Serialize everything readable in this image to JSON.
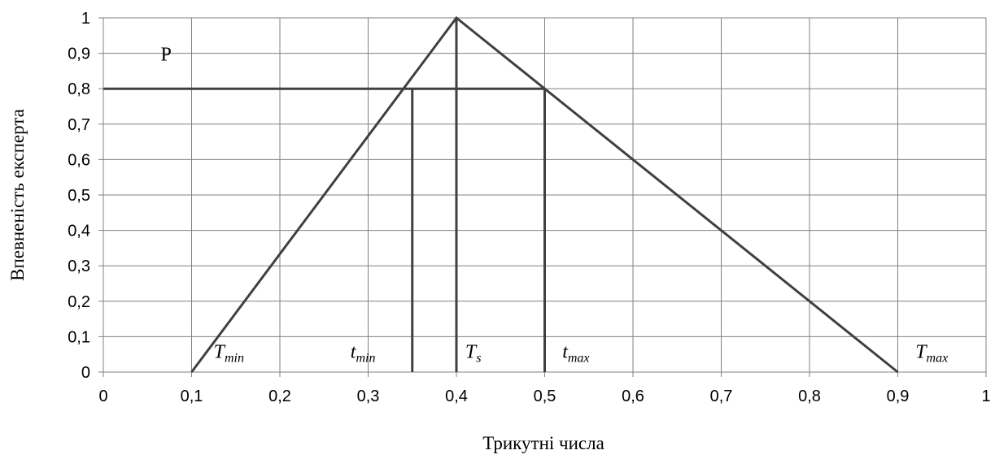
{
  "chart_data": {
    "type": "line",
    "xlabel": "Трикутні числа",
    "ylabel": "Впевненість експерта",
    "xlim": [
      0,
      1
    ],
    "ylim": [
      0,
      1
    ],
    "x_ticks": [
      "0",
      "0,1",
      "0,2",
      "0,3",
      "0,4",
      "0,5",
      "0,6",
      "0,7",
      "0,8",
      "0,9",
      "1"
    ],
    "y_ticks": [
      "0",
      "0,1",
      "0,2",
      "0,3",
      "0,4",
      "0,5",
      "0,6",
      "0,7",
      "0,8",
      "0,9",
      "1"
    ],
    "grid": true,
    "triangle": {
      "x": [
        0.1,
        0.4,
        0.9
      ],
      "y": [
        0,
        1,
        0
      ]
    },
    "level_line": {
      "y": 0.8,
      "x_from": 0,
      "x_to": 0.5
    },
    "verticals": [
      {
        "x": 0.35,
        "y_to": 0.8
      },
      {
        "x": 0.4,
        "y_to": 1.0
      },
      {
        "x": 0.5,
        "y_to": 0.8
      }
    ],
    "annotations": [
      {
        "main": "P",
        "sub": "",
        "italic": false,
        "x": 0.065,
        "y": 0.88
      },
      {
        "main": "T",
        "sub": "min",
        "italic": true,
        "x": 0.125,
        "y": 0.04
      },
      {
        "main": "t",
        "sub": "min",
        "italic": true,
        "x": 0.28,
        "y": 0.04
      },
      {
        "main": "T",
        "sub": "s",
        "italic": true,
        "x": 0.41,
        "y": 0.04
      },
      {
        "main": "t",
        "sub": "max",
        "italic": true,
        "x": 0.52,
        "y": 0.04
      },
      {
        "main": "T",
        "sub": "max",
        "italic": true,
        "x": 0.92,
        "y": 0.04
      }
    ],
    "line_color": "#404040",
    "grid_color": "#808080"
  }
}
